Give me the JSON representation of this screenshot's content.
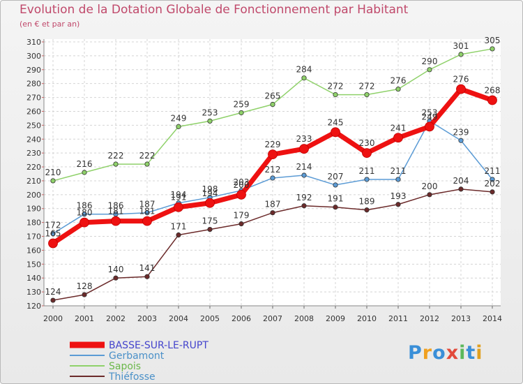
{
  "header": {
    "title": "Evolution de la Dotation Globale de Fonctionnement par Habitant",
    "subtitle": "(en € et par an)"
  },
  "logo": {
    "letters": [
      "P",
      "r",
      "o",
      "x",
      "i",
      "t",
      "i"
    ],
    "colors": [
      "#3a8fd8",
      "#f0a020",
      "#3a8fd8",
      "#e24a3b",
      "#5cb85c",
      "#3a8fd8",
      "#e0a020"
    ]
  },
  "chart_data": {
    "type": "line",
    "title": "Evolution de la Dotation Globale de Fonctionnement par Habitant",
    "subtitle": "(en € et par an)",
    "xlabel": "",
    "ylabel": "",
    "x": [
      "2000",
      "2001",
      "2002",
      "2003",
      "2004",
      "2005",
      "2006",
      "2007",
      "2008",
      "2009",
      "2010",
      "2011",
      "2012",
      "2013",
      "2014"
    ],
    "ylim": [
      120,
      310
    ],
    "yticks": [
      120,
      130,
      140,
      150,
      160,
      170,
      180,
      190,
      200,
      210,
      220,
      230,
      240,
      250,
      260,
      270,
      280,
      290,
      300,
      310
    ],
    "grid": true,
    "legend_position": "bottom-left",
    "series": [
      {
        "name": "Sapois",
        "color": "#8fd16a",
        "width": 1.5,
        "values": [
          210,
          216,
          222,
          222,
          249,
          253,
          259,
          265,
          284,
          272,
          272,
          276,
          290,
          301,
          305
        ]
      },
      {
        "name": "Gerbamont",
        "color": "#5b9bd5",
        "width": 1.5,
        "values": [
          172,
          186,
          186,
          187,
          194,
          198,
          203,
          212,
          214,
          207,
          211,
          211,
          253,
          239,
          211
        ]
      },
      {
        "name": "Thiéfosse",
        "color": "#6b2a2a",
        "width": 1.5,
        "values": [
          124,
          128,
          140,
          141,
          171,
          175,
          179,
          187,
          192,
          191,
          189,
          193,
          200,
          204,
          202
        ]
      },
      {
        "name": "BASSE-SUR-LE-RUPT",
        "color": "#ee1111",
        "width": 7,
        "values": [
          165,
          180,
          181,
          181,
          191,
          194,
          200,
          229,
          233,
          245,
          230,
          241,
          249,
          276,
          268
        ]
      }
    ],
    "legend_order": [
      "BASSE-SUR-LE-RUPT",
      "Gerbamont",
      "Sapois",
      "Thiéfosse"
    ],
    "legend_colors": [
      "#4444cc",
      "#4a90c8",
      "#6bb84a",
      "#4a90c8"
    ]
  }
}
